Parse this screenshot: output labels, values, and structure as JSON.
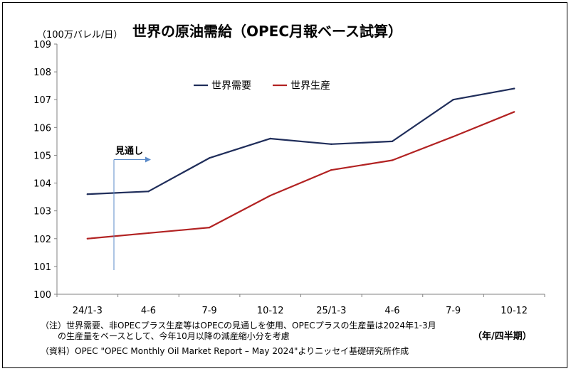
{
  "unit_label": "（100万バレル/日）",
  "title": "世界の原油需給（OPEC月報ベース試算）",
  "period_label": "（年/四半期）",
  "notes": {
    "note_line1": "（注）世界需要、非OPECプラス生産等はOPECの見通しを使用、OPECプラスの生産量は2024年1-3月",
    "note_line2": "　　の生産量をベースとして、今年10月以降の減産縮小分を考慮",
    "source": "（資料）OPEC \"OPEC Monthly Oil Market Report – May 2024\"よりニッセイ基礎研究所作成"
  },
  "chart_data": {
    "type": "line",
    "categories": [
      "24/1-3",
      "4-6",
      "7-9",
      "10-12",
      "25/1-3",
      "4-6",
      "7-9",
      "10-12"
    ],
    "series": [
      {
        "name": "世界需要",
        "color": "#1f2d5a",
        "values": [
          103.6,
          103.7,
          104.9,
          105.6,
          105.4,
          105.5,
          107.0,
          107.4
        ]
      },
      {
        "name": "世界生産",
        "color": "#b22222",
        "values": [
          102.0,
          102.2,
          102.4,
          103.55,
          104.47,
          104.82,
          105.67,
          106.56
        ]
      }
    ],
    "yticks": [
      100,
      101,
      102,
      103,
      104,
      105,
      106,
      107,
      108,
      109
    ],
    "ylim": [
      100,
      109
    ],
    "grid": false,
    "legend": "top-center",
    "annotation": {
      "text": "見通し",
      "category_index": 1,
      "value": 105
    }
  }
}
